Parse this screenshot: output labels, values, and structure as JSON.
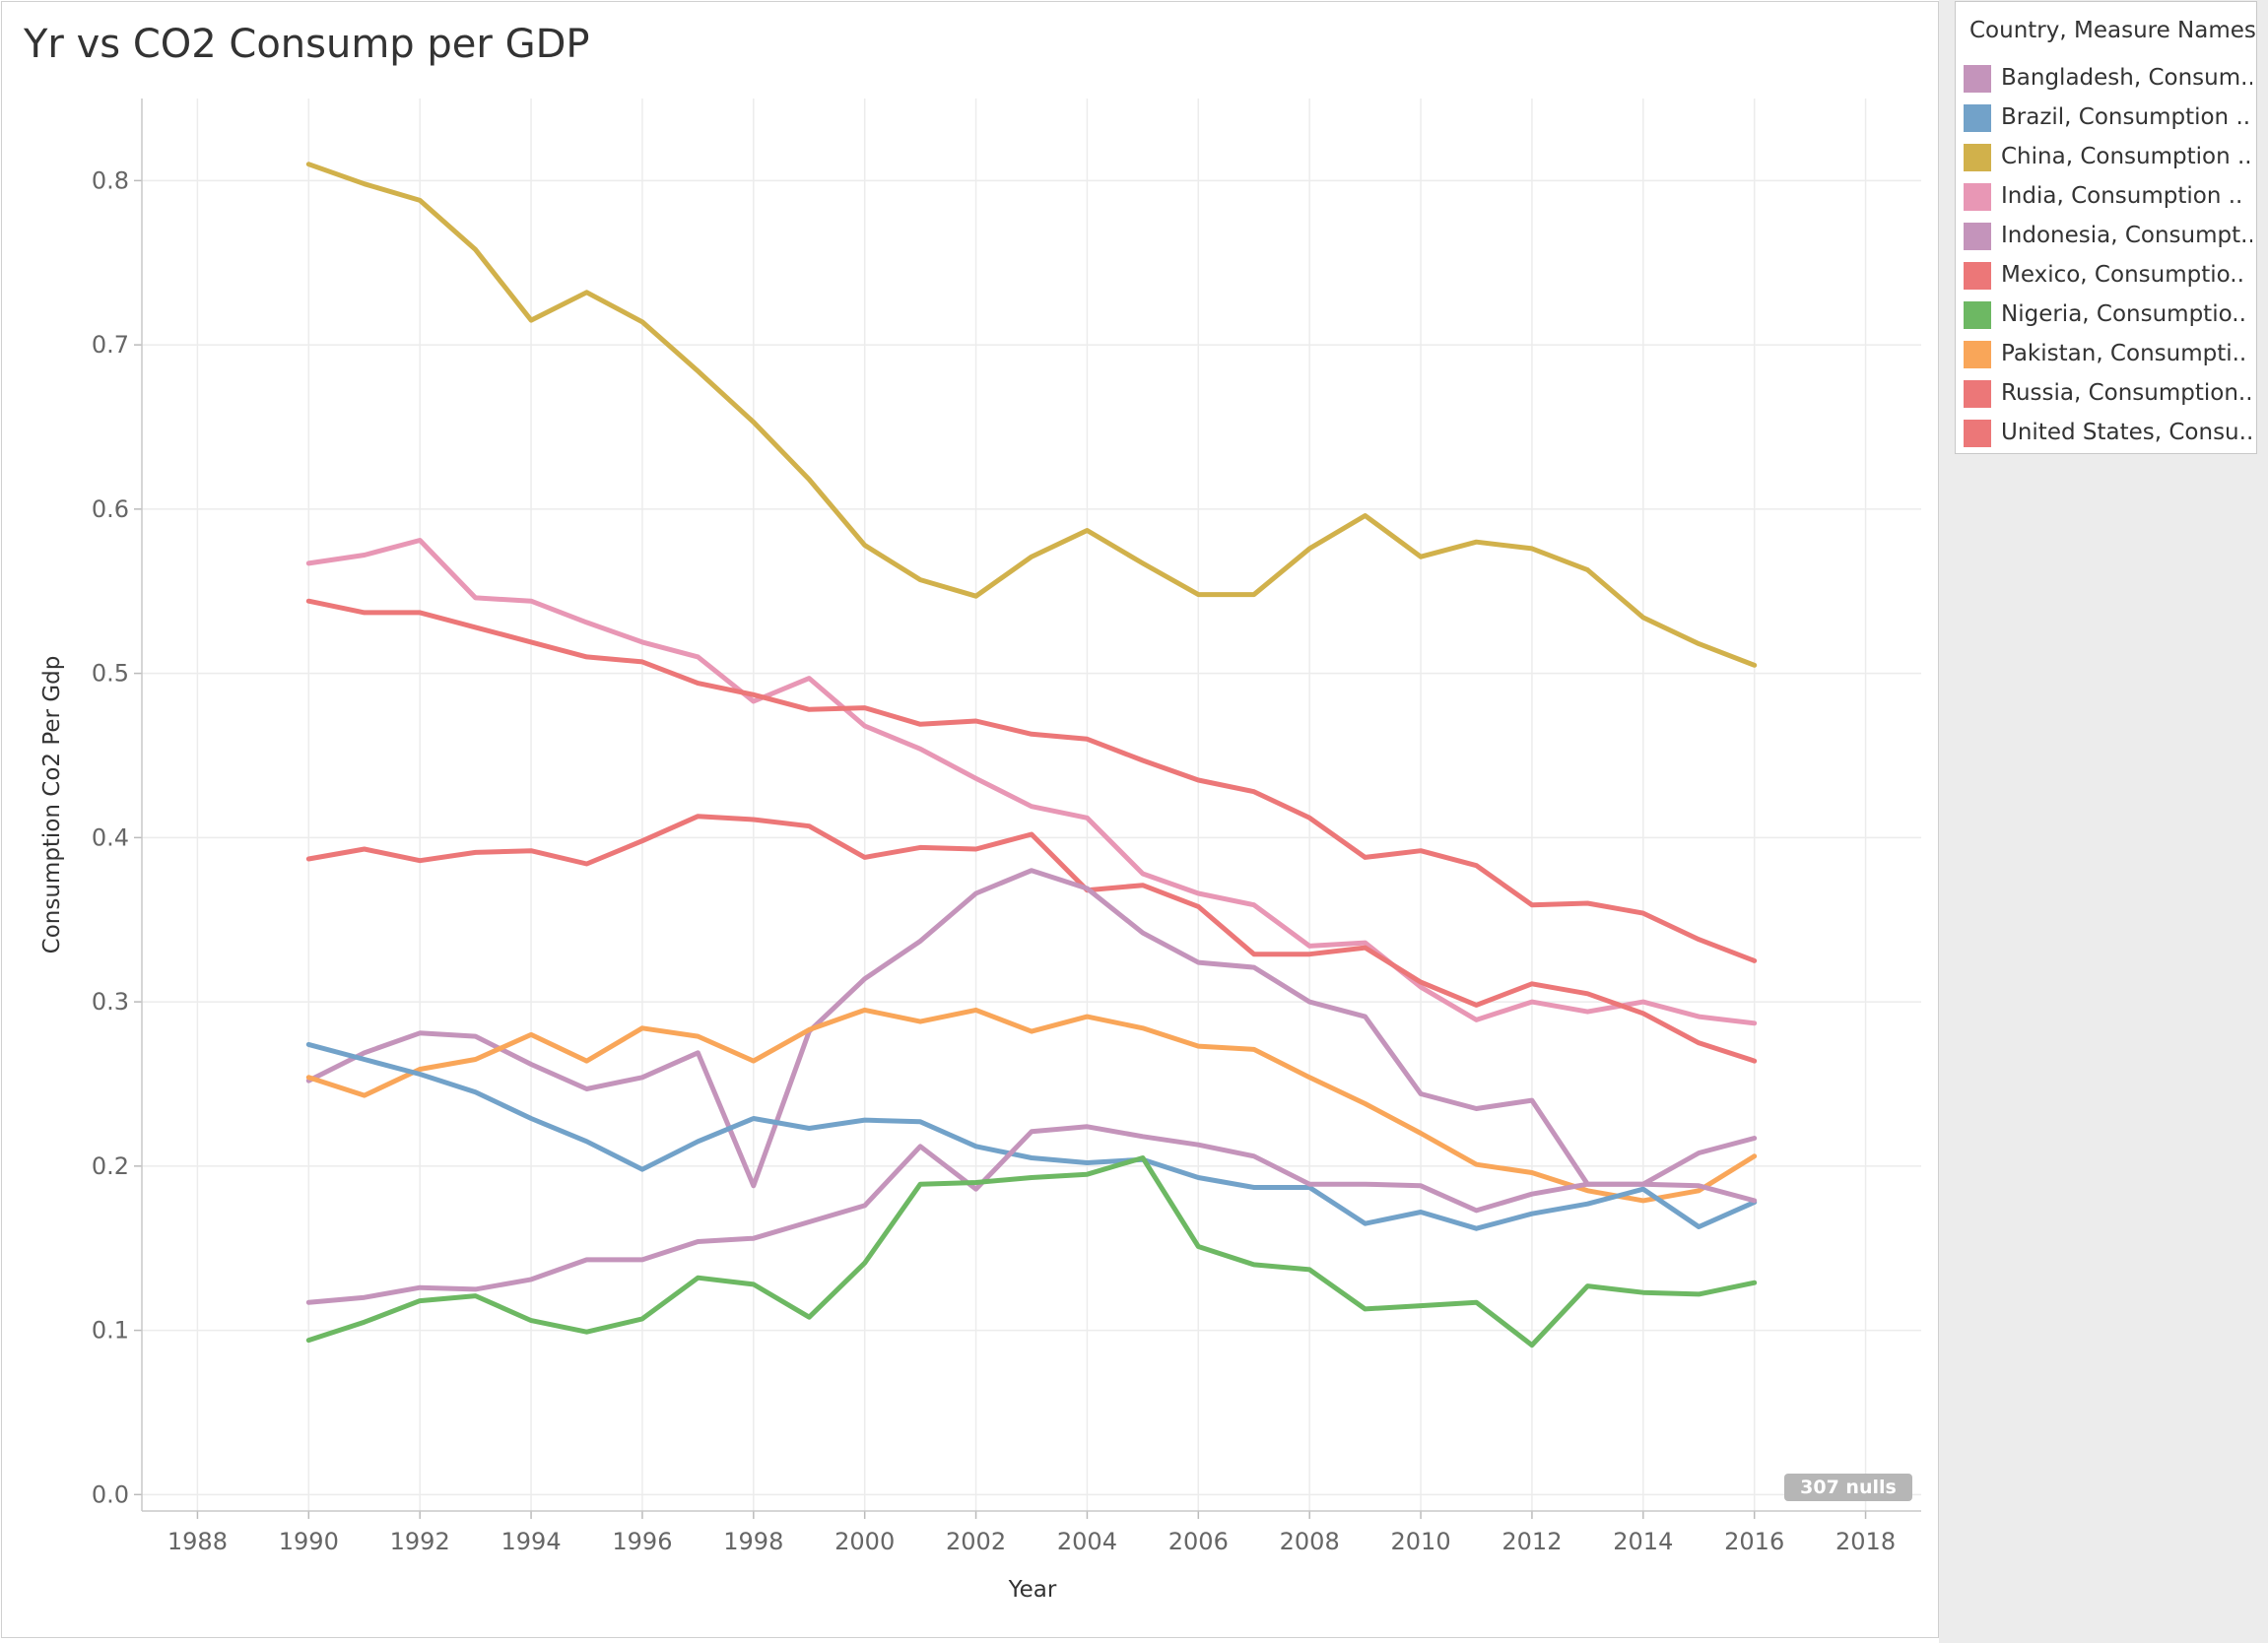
{
  "title": "Yr vs CO2 Consump per GDP",
  "legend": {
    "title": "Country, Measure Names",
    "items": [
      {
        "label": "Bangladesh, Consum..",
        "color": "#c494bb"
      },
      {
        "label": "Brazil, Consumption ..",
        "color": "#72a2c9"
      },
      {
        "label": "China, Consumption ..",
        "color": "#d1b14b"
      },
      {
        "label": "India, Consumption ..",
        "color": "#e897b5"
      },
      {
        "label": "Indonesia, Consumpt..",
        "color": "#c494bb"
      },
      {
        "label": "Mexico, Consumptio..",
        "color": "#ec7778"
      },
      {
        "label": "Nigeria, Consumptio..",
        "color": "#6db863"
      },
      {
        "label": "Pakistan, Consumpti..",
        "color": "#f9a659"
      },
      {
        "label": "Russia, Consumption..",
        "color": "#ec7778"
      },
      {
        "label": "United States, Consu..",
        "color": "#ec7778"
      }
    ]
  },
  "nulls_badge": "307 nulls",
  "chart_data": {
    "type": "line",
    "xlabel": "Year",
    "ylabel": "Consumption Co2 Per Gdp",
    "xlim": [
      1987,
      2019
    ],
    "ylim": [
      -0.01,
      0.85
    ],
    "xticks": [
      "1988",
      "1990",
      "1992",
      "1994",
      "1996",
      "1998",
      "2000",
      "2002",
      "2004",
      "2006",
      "2008",
      "2010",
      "2012",
      "2014",
      "2016",
      "2018"
    ],
    "yticks": [
      "0.0",
      "0.1",
      "0.2",
      "0.3",
      "0.4",
      "0.5",
      "0.6",
      "0.7",
      "0.8"
    ],
    "grid": true,
    "legend_position": "right",
    "x": [
      1990,
      1991,
      1992,
      1993,
      1994,
      1995,
      1996,
      1997,
      1998,
      1999,
      2000,
      2001,
      2002,
      2003,
      2004,
      2005,
      2006,
      2007,
      2008,
      2009,
      2010,
      2011,
      2012,
      2013,
      2014,
      2015,
      2016
    ],
    "series": [
      {
        "name": "China, Consumption ..",
        "color": "#d1b14b",
        "values": [
          0.81,
          0.798,
          0.788,
          0.758,
          0.715,
          0.732,
          0.714,
          0.684,
          0.653,
          0.618,
          0.578,
          0.557,
          0.547,
          0.571,
          0.587,
          0.567,
          0.548,
          0.548,
          0.576,
          0.596,
          0.571,
          0.58,
          0.576,
          0.563,
          0.534,
          0.518,
          0.505
        ]
      },
      {
        "name": "India, Consumption ..",
        "color": "#e897b5",
        "values": [
          0.567,
          0.572,
          0.581,
          0.546,
          0.544,
          0.531,
          0.519,
          0.51,
          0.483,
          0.497,
          0.468,
          0.454,
          0.436,
          0.419,
          0.412,
          0.378,
          0.366,
          0.359,
          0.334,
          0.336,
          0.309,
          0.289,
          0.3,
          0.294,
          0.3,
          0.291,
          0.287
        ]
      },
      {
        "name": "Russia, Consumption..",
        "color": "#ec7778",
        "values": [
          0.544,
          0.537,
          0.537,
          0.528,
          0.519,
          0.51,
          0.507,
          0.494,
          0.487,
          0.478,
          0.479,
          0.469,
          0.471,
          0.463,
          0.46,
          0.447,
          0.435,
          0.428,
          0.412,
          0.388,
          0.392,
          0.383,
          0.359,
          0.36,
          0.354,
          0.338,
          0.325
        ]
      },
      {
        "name": "Mexico, Consumptio..",
        "color": "#ec7778",
        "values": [
          0.387,
          0.393,
          0.386,
          0.391,
          0.392,
          0.384,
          0.398,
          0.413,
          0.411,
          0.407,
          0.388,
          0.394,
          0.393,
          0.402,
          0.368,
          0.371,
          0.358,
          0.329,
          0.329,
          0.333,
          0.312,
          0.298,
          0.311,
          0.305,
          0.293,
          0.275,
          0.264
        ]
      },
      {
        "name": "Indonesia, Consumpt..",
        "color": "#c494bb",
        "values": [
          0.252,
          0.269,
          0.281,
          0.279,
          0.262,
          0.247,
          0.254,
          0.269,
          0.188,
          0.282,
          0.314,
          0.337,
          0.366,
          0.38,
          0.369,
          0.342,
          0.324,
          0.321,
          0.3,
          0.291,
          0.244,
          0.235,
          0.24,
          0.189,
          0.189,
          0.208,
          0.217
        ]
      },
      {
        "name": "Pakistan, Consumpti..",
        "color": "#f9a659",
        "values": [
          0.254,
          0.243,
          0.259,
          0.265,
          0.28,
          0.264,
          0.284,
          0.279,
          0.264,
          0.283,
          0.295,
          0.288,
          0.295,
          0.282,
          0.291,
          0.284,
          0.273,
          0.271,
          0.254,
          0.238,
          0.22,
          0.201,
          0.196,
          0.185,
          0.179,
          0.185,
          0.206
        ]
      },
      {
        "name": "Brazil, Consumption ..",
        "color": "#72a2c9",
        "values": [
          0.274,
          0.265,
          0.256,
          0.245,
          0.229,
          0.215,
          0.198,
          0.215,
          0.229,
          0.223,
          0.228,
          0.227,
          0.212,
          0.205,
          0.202,
          0.204,
          0.193,
          0.187,
          0.187,
          0.165,
          0.172,
          0.162,
          0.171,
          0.177,
          0.186,
          0.163,
          0.178
        ]
      },
      {
        "name": "Bangladesh, Consum..",
        "color": "#c494bb",
        "values": [
          0.117,
          0.12,
          0.126,
          0.125,
          0.131,
          0.143,
          0.143,
          0.154,
          0.156,
          0.166,
          0.176,
          0.212,
          0.186,
          0.221,
          0.224,
          0.218,
          0.213,
          0.206,
          0.189,
          0.189,
          0.188,
          0.173,
          0.183,
          0.189,
          0.189,
          0.188,
          0.179
        ]
      },
      {
        "name": "Nigeria, Consumptio..",
        "color": "#6db863",
        "values": [
          0.094,
          0.105,
          0.118,
          0.121,
          0.106,
          0.099,
          0.107,
          0.132,
          0.128,
          0.108,
          0.141,
          0.189,
          0.19,
          0.193,
          0.195,
          0.205,
          0.151,
          0.14,
          0.137,
          0.113,
          0.115,
          0.117,
          0.091,
          0.127,
          0.123,
          0.122,
          0.129
        ]
      }
    ]
  }
}
